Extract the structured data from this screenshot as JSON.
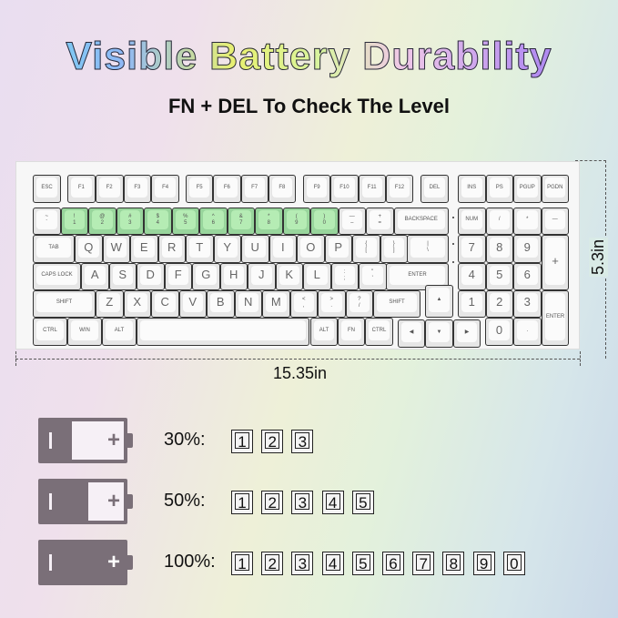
{
  "title": "Visible Battery Durability",
  "subtitle": "FN + DEL To Check The Level",
  "dimensions": {
    "width": "15.35in",
    "height": "5.3in"
  },
  "keyboard": {
    "rows": [
      [
        "ESC",
        "F1",
        "F2",
        "F3",
        "F4",
        "F5",
        "F6",
        "F7",
        "F8",
        "F9",
        "F10",
        "F11",
        "F12",
        "DEL",
        "INS",
        "PS",
        "PGUP",
        "PGDN"
      ],
      [
        "~\n`",
        "!\n1",
        "@\n2",
        "#\n3",
        "$\n4",
        "%\n5",
        "^\n6",
        "&\n7",
        "*\n8",
        "(\n9",
        ")\n0",
        "—\n–",
        "+\n=",
        "BACKSPACE",
        "NUM",
        "/",
        "*",
        "—"
      ],
      [
        "TAB",
        "Q",
        "W",
        "E",
        "R",
        "T",
        "Y",
        "U",
        "I",
        "O",
        "P",
        "{\n[",
        "}\n]",
        "|\n\\",
        "7",
        "8",
        "9",
        "+"
      ],
      [
        "CAPS LOCK",
        "A",
        "S",
        "D",
        "F",
        "G",
        "H",
        "J",
        "K",
        "L",
        ":\n;",
        "\"\n'",
        "ENTER",
        "4",
        "5",
        "6"
      ],
      [
        "SHIFT",
        "Z",
        "X",
        "C",
        "V",
        "B",
        "N",
        "M",
        "<\n,",
        ">\n.",
        "?\n/",
        "SHIFT",
        "▲",
        "1",
        "2",
        "3",
        "ENTER"
      ],
      [
        "CTRL",
        "WIN",
        "ALT",
        "",
        "ALT",
        "FN",
        "CTRL",
        "◀",
        "▼",
        "▶",
        "0",
        "."
      ]
    ],
    "accent_color": "#b5ecb4"
  },
  "battery_levels": [
    {
      "label": "30%:",
      "fill": 0.3,
      "keys": [
        "1",
        "2",
        "3"
      ]
    },
    {
      "label": "50%:",
      "fill": 0.5,
      "keys": [
        "1",
        "2",
        "3",
        "4",
        "5"
      ]
    },
    {
      "label": "100%:",
      "fill": 1.0,
      "keys": [
        "1",
        "2",
        "3",
        "4",
        "5",
        "6",
        "7",
        "8",
        "9",
        "0"
      ]
    }
  ]
}
